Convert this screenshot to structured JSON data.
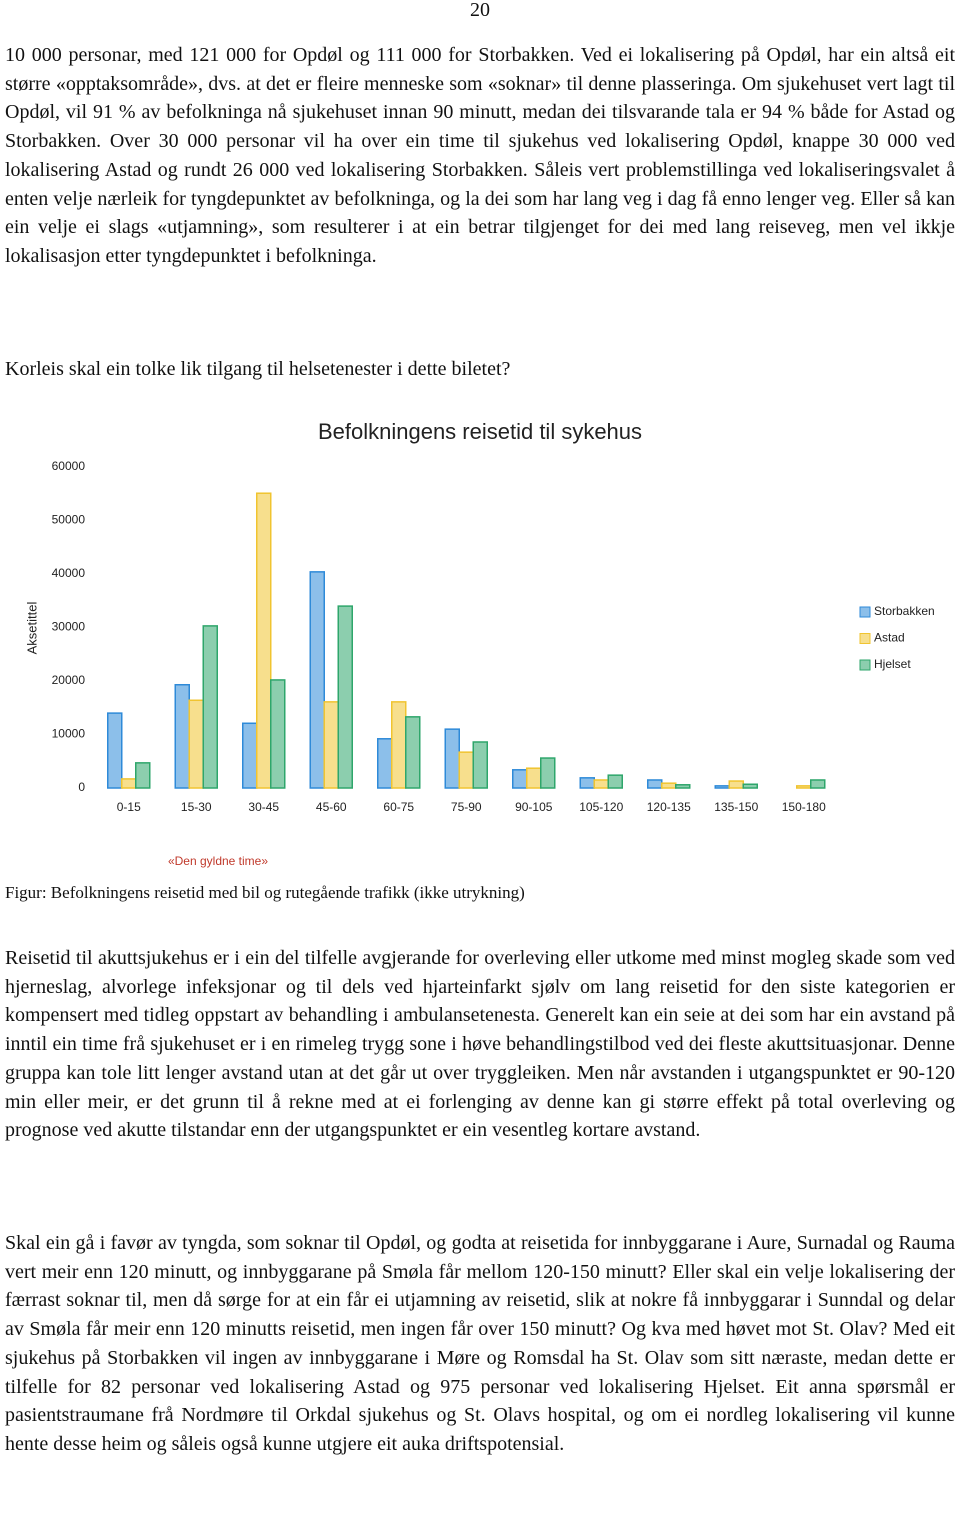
{
  "page_number": "20",
  "paragraphs": [
    "10 000 personar, med 121 000 for Opdøl og 111 000 for Storbakken. Ved ei lokalisering på Opdøl, har ein altså eit større «opptaksområde», dvs. at det er fleire menneske som «soknar» til denne plasseringa. Om sjukehuset vert lagt til Opdøl, vil 91 % av befolkninga nå sjukehuset innan 90 minutt, medan dei tilsvarande tala er 94 % både for Astad og Storbakken. Over 30 000 personar vil ha over ein time til sjukehus ved lokalisering Opdøl, knappe 30 000 ved lokalisering Astad og rundt 26 000 ved lokalisering Storbakken. Såleis vert problemstillinga ved lokaliseringsvalet å enten velje nærleik for tyngdepunktet av befolkninga, og la dei som har lang veg i dag få enno lenger veg. Eller så kan ein velje ei slags «utjamning», som resulterer i at ein betrar tilgjenget for dei med lang reiseveg, men vel ikkje lokalisasjon etter tyngdepunktet i befolkninga.",
    "Korleis skal ein tolke lik tilgang til helsetenester i dette biletet?"
  ],
  "chart_data": {
    "type": "bar",
    "title": "Befolkningens reisetid til sykehus",
    "y_label": "Aksetittel",
    "annotation": "«Den gyldne time»",
    "categories": [
      "0-15",
      "15-30",
      "30-45",
      "45-60",
      "60-75",
      "75-90",
      "90-105",
      "105-120",
      "120-135",
      "135-150",
      "150-180"
    ],
    "series": [
      {
        "name": "Storbakken",
        "color": "#2e8ad8",
        "values": [
          14000,
          19300,
          12100,
          40400,
          9200,
          11000,
          3400,
          1900,
          1500,
          400,
          0
        ]
      },
      {
        "name": "Astad",
        "color": "#f0c430",
        "values": [
          1700,
          16400,
          55100,
          16100,
          16100,
          6700,
          3700,
          1500,
          900,
          1300,
          400
        ]
      },
      {
        "name": "Hjelset",
        "color": "#2ea66b",
        "values": [
          4700,
          30300,
          20200,
          34000,
          13300,
          8600,
          5600,
          2400,
          600,
          700,
          1500
        ]
      }
    ],
    "ylim": [
      0,
      60000
    ],
    "yticks": [
      0,
      10000,
      20000,
      30000,
      40000,
      50000,
      60000
    ],
    "grid": false,
    "legend": "right"
  },
  "caption": "Figur: Befolkningens reisetid med bil og rutegående trafikk (ikke utrykning)",
  "paragraphs_after": [
    "Reisetid til akuttsjukehus er i ein del tilfelle avgjerande for overleving eller utkome med minst mogleg skade som ved hjerneslag, alvorlege infeksjonar og til dels ved hjarteinfarkt sjølv om lang reisetid for den siste kategorien er kompensert med tidleg oppstart av behandling i ambulansetenesta. Generelt kan ein seie at dei som har ein avstand på inntil ein time frå sjukehuset er i en rimeleg trygg sone i høve behandlingstilbod ved dei fleste akuttsituasjonar. Denne gruppa kan tole litt lenger avstand utan at det går ut over tryggleiken. Men når avstanden i utgangspunktet er 90-120 min eller meir, er det grunn til å rekne med at ei forlenging av denne kan gi større effekt på total overleving og prognose ved akutte tilstandar enn der utgangspunktet er ein vesentleg kortare avstand.",
    "Skal ein gå i favør av tyngda, som soknar til Opdøl, og godta at reisetida for innbyggarane i Aure, Surnadal og Rauma vert meir enn 120 minutt, og innbyggarane på Smøla får mellom 120-150 minutt? Eller skal ein velje lokalisering der færrast soknar til, men då sørge for at ein får ei utjamning av reisetid, slik at nokre få innbyggarar i Sunndal og delar av Smøla får meir enn 120 minutts reisetid, men ingen får over 150 minutt? Og kva med høvet mot St. Olav? Med eit sjukehus på Storbakken vil ingen av innbyggarane i Møre og Romsdal ha St. Olav som sitt næraste, medan dette er tilfelle for 82 personar ved lokalisering Astad og 975 personar ved lokalisering Hjelset. Eit anna spørsmål er pasientstraumane frå Nordmøre til Orkdal sjukehus og St. Olavs hospital, og om ei nordleg lokalisering vil kunne hente desse heim og såleis også kunne utgjere eit auka driftspotensial."
  ]
}
